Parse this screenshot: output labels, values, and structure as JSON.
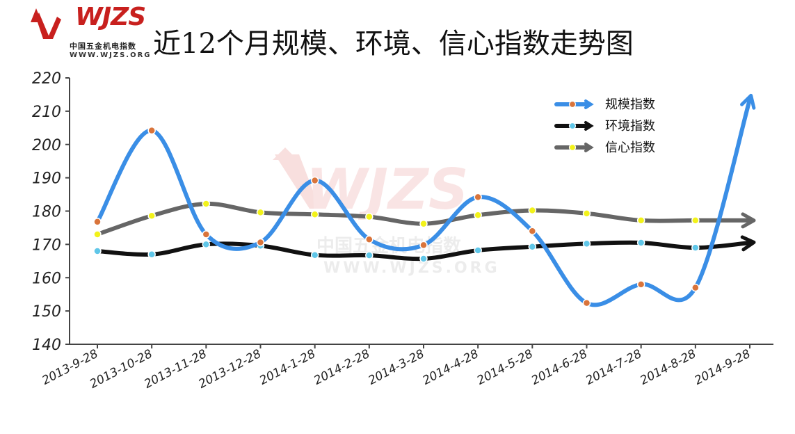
{
  "header": {
    "title": "近12个月规模、环境、信心指数走势图",
    "logo_mark": "WJZS",
    "logo_cn": "中国五金机电指数",
    "logo_url": "WWW.WJZS.ORG"
  },
  "watermark": {
    "mark": "WJZS",
    "cn": "中国五金机电指数",
    "url": "WWW.WJZS.ORG"
  },
  "chart_data": {
    "type": "line",
    "categories": [
      "2013-9-28",
      "2013-10-28",
      "2013-11-28",
      "2013-12-28",
      "2014-1-28",
      "2014-2-28",
      "2014-3-28",
      "2014-4-28",
      "2014-5-28",
      "2014-6-28",
      "2014-7-28",
      "2014-8-28",
      "2014-9-28"
    ],
    "y_ticks": [
      140,
      150,
      160,
      170,
      180,
      190,
      200,
      210,
      220
    ],
    "ylim": [
      140,
      220
    ],
    "legend_position": "top-right",
    "series": [
      {
        "name": "规模指数",
        "color": "#3a8ee6",
        "marker_color": "#d9743b",
        "values": [
          176.8,
          204.2,
          173.0,
          170.6,
          189.2,
          171.5,
          169.8,
          184.2,
          174.0,
          152.4,
          158.0,
          157.0,
          213.5
        ]
      },
      {
        "name": "环境指数",
        "color": "#111111",
        "marker_color": "#5fc6e8",
        "values": [
          168.0,
          167.0,
          170.0,
          169.6,
          166.8,
          166.7,
          165.7,
          168.2,
          169.3,
          170.2,
          170.5,
          169.0,
          170.5
        ]
      },
      {
        "name": "信心指数",
        "color": "#666666",
        "marker_color": "#f2f21a",
        "values": [
          173.0,
          178.6,
          182.2,
          179.6,
          179.0,
          178.3,
          176.2,
          178.8,
          180.2,
          179.3,
          177.2,
          177.2,
          177.2
        ]
      }
    ]
  }
}
